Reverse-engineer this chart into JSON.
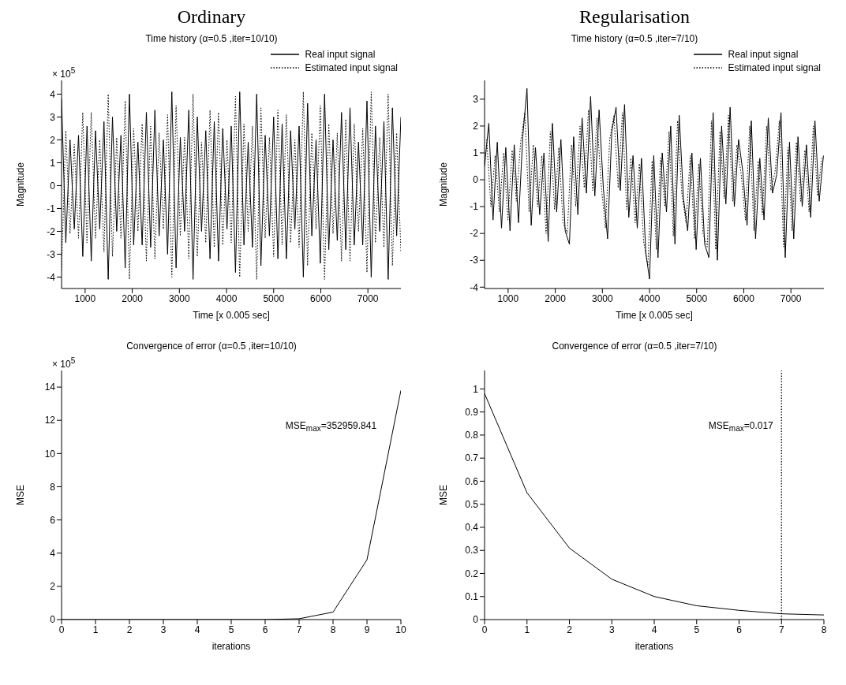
{
  "chart_data": [
    {
      "type": "line",
      "subtitle": "Ordinary",
      "title": "Time history (α=0.5 ,iter=10/10)",
      "xlabel": "Time [x 0.005 sec]",
      "ylabel": "Magnitude",
      "annotations": [
        "× 10$^{5}$"
      ],
      "legend": "top right",
      "x": [
        500,
        590,
        680,
        770,
        860,
        950,
        1040,
        1130,
        1220,
        1310,
        1400,
        1490,
        1580,
        1670,
        1760,
        1850,
        1940,
        2030,
        2120,
        2210,
        2300,
        2390,
        2480,
        2570,
        2660,
        2750,
        2840,
        2930,
        3020,
        3110,
        3200,
        3290,
        3380,
        3470,
        3560,
        3650,
        3740,
        3830,
        3920,
        4010,
        4100,
        4190,
        4280,
        4370,
        4460,
        4550,
        4640,
        4730,
        4820,
        4910,
        5000,
        5090,
        5180,
        5270,
        5360,
        5450,
        5540,
        5630,
        5720,
        5810,
        5900,
        5990,
        6080,
        6170,
        6260,
        6350,
        6440,
        6530,
        6620,
        6710,
        6800,
        6890,
        6980,
        7070,
        7160,
        7250,
        7340,
        7430,
        7520,
        7610,
        7700
      ],
      "series": [
        {
          "name": "Real input signal",
          "color": "#000000",
          "line_style": "solid",
          "values": [
            3.8,
            -2.5,
            2.0,
            -1.9,
            2.2,
            -3.1,
            2.6,
            -3.3,
            2.4,
            -1.9,
            2.8,
            -4.1,
            3.0,
            -2.0,
            2.2,
            -3.6,
            4.0,
            -2.6,
            1.9,
            -2.6,
            3.2,
            -2.7,
            3.3,
            -2.2,
            2.0,
            -3.0,
            4.1,
            -3.6,
            2.1,
            -2.0,
            3.3,
            -4.1,
            3.0,
            -2.0,
            2.4,
            -3.2,
            2.8,
            -3.3,
            2.5,
            -1.9,
            2.6,
            -3.8,
            4.1,
            -2.6,
            1.9,
            -2.7,
            4.0,
            -3.5,
            2.2,
            -2.2,
            3.0,
            -3.2,
            2.7,
            -3.2,
            2.4,
            -1.9,
            2.6,
            -4.0,
            3.6,
            -2.2,
            2.0,
            -3.4,
            4.0,
            -2.8,
            2.0,
            -2.4,
            3.2,
            -2.8,
            3.4,
            -2.6,
            1.9,
            -2.6,
            3.7,
            -4.0,
            2.6,
            -2.0,
            2.8,
            -4.1,
            3.4,
            -2.2,
            3.0
          ]
        },
        {
          "name": "Estimated input signal",
          "color": "#000000",
          "line_style": "dotted",
          "values": [
            -3.7,
            2.4,
            -2.1,
            1.8,
            -2.3,
            3.2,
            -2.5,
            3.2,
            -2.3,
            2.0,
            -2.9,
            4.0,
            -3.1,
            2.1,
            -2.3,
            3.7,
            -4.1,
            2.5,
            -2.0,
            2.7,
            -3.3,
            2.6,
            -3.2,
            2.3,
            -1.9,
            3.1,
            -4.0,
            3.5,
            -2.2,
            2.1,
            -3.2,
            4.0,
            -3.1,
            1.9,
            -2.5,
            3.3,
            -2.7,
            3.2,
            -2.6,
            2.0,
            -2.5,
            3.9,
            -4.0,
            2.7,
            -2.0,
            2.6,
            -4.1,
            3.4,
            -2.3,
            2.1,
            -3.1,
            3.3,
            -2.6,
            3.1,
            -2.5,
            2.0,
            -2.7,
            4.1,
            -3.5,
            2.3,
            -1.9,
            3.5,
            -4.1,
            2.7,
            -2.1,
            2.3,
            -3.3,
            2.9,
            -3.3,
            2.7,
            -2.0,
            2.5,
            -3.8,
            4.1,
            -2.5,
            2.1,
            -2.7,
            4.0,
            -3.5,
            2.3,
            -2.9
          ]
        }
      ],
      "xlim": [
        500,
        7700
      ],
      "xticks": [
        1000,
        2000,
        3000,
        4000,
        5000,
        6000,
        7000
      ],
      "ylim": [
        -4.5,
        4.6
      ],
      "yticks": [
        -4,
        -3,
        -2,
        -1,
        0,
        1,
        2,
        3,
        4
      ]
    },
    {
      "type": "line",
      "subtitle": "Regularisation",
      "title": "Time history (α=0.5 ,iter=7/10)",
      "xlabel": "Time [x 0.005 sec]",
      "ylabel": "Magnitude",
      "legend": "top right",
      "series": [
        {
          "name": "Real input signal",
          "color": "#000000",
          "line_style": "solid",
          "x": [
            500,
            590,
            680,
            770,
            860,
            950,
            1040,
            1130,
            1220,
            1310,
            1400,
            1490,
            1580,
            1670,
            1760,
            1850,
            1940,
            2030,
            2120,
            2210,
            2300,
            2390,
            2480,
            2570,
            2660,
            2750,
            2840,
            2930,
            3020,
            3110,
            3200,
            3290,
            3380,
            3470,
            3560,
            3650,
            3740,
            3830,
            3920,
            4000,
            4090,
            4180,
            4270,
            4360,
            4450,
            4540,
            4630,
            4720,
            4810,
            4900,
            4990,
            5080,
            5170,
            5260,
            5350,
            5440,
            5530,
            5620,
            5710,
            5800,
            5890,
            5980,
            6070,
            6160,
            6250,
            6340,
            6430,
            6520,
            6610,
            6700,
            6790,
            6880,
            6970,
            7060,
            7150,
            7240,
            7330,
            7420,
            7510,
            7600,
            7690
          ],
          "values": [
            0.5,
            2.1,
            -1.5,
            1.4,
            -1.8,
            1.2,
            -1.9,
            1.3,
            -1.6,
            1.6,
            3.4,
            -1.7,
            1.2,
            -1.3,
            1.0,
            -2.3,
            2.1,
            -1.2,
            1.5,
            -1.9,
            -2.4,
            1.6,
            -1.3,
            2.3,
            -0.5,
            3.1,
            -0.6,
            2.6,
            -0.3,
            -2.2,
            1.8,
            2.7,
            -0.4,
            2.8,
            -1.4,
            0.9,
            -1.8,
            0.8,
            -2.7,
            -3.7,
            0.9,
            -2.9,
            1.0,
            -1.2,
            2.0,
            -2.4,
            2.4,
            -0.7,
            -1.9,
            1.0,
            -2.6,
            0.8,
            -2.4,
            -2.9,
            2.5,
            -3.0,
            2.0,
            -0.9,
            2.7,
            -1.0,
            1.5,
            0.3,
            -1.7,
            2.2,
            -2.2,
            0.8,
            -1.5,
            2.3,
            -0.5,
            0.2,
            2.5,
            -2.9,
            1.4,
            -2.2,
            1.6,
            -1.0,
            1.3,
            -1.4,
            2.2,
            -0.8,
            0.9
          ]
        },
        {
          "name": "Estimated input signal",
          "color": "#000000",
          "line_style": "dotted",
          "x": [
            545,
            635,
            725,
            815,
            905,
            995,
            1085,
            1175,
            1265,
            1355,
            1445,
            1535,
            1625,
            1715,
            1805,
            1895,
            1985,
            2075,
            2165,
            2255,
            2345,
            2435,
            2525,
            2615,
            2705,
            2795,
            2885,
            2975,
            3065,
            3155,
            3245,
            3335,
            3425,
            3515,
            3605,
            3695,
            3785,
            3875,
            3965,
            4055,
            4145,
            4235,
            4325,
            4415,
            4505,
            4595,
            4685,
            4775,
            4865,
            4955,
            5045,
            5135,
            5225,
            5315,
            5405,
            5495,
            5585,
            5675,
            5765,
            5855,
            5945,
            6035,
            6125,
            6215,
            6305,
            6395,
            6485,
            6575,
            6665,
            6755,
            6845,
            6935,
            7025,
            7115,
            7205,
            7295,
            7385,
            7475,
            7565,
            7655
          ],
          "values": [
            1.5,
            -1.0,
            0.9,
            -1.2,
            1.0,
            -1.5,
            1.1,
            -0.8,
            1.4,
            2.5,
            -1.2,
            1.3,
            -1.0,
            0.9,
            -2.0,
            1.8,
            -1.1,
            1.2,
            -1.6,
            -2.0,
            1.3,
            -1.0,
            2.0,
            -0.3,
            2.6,
            -0.4,
            2.3,
            -0.2,
            -1.8,
            1.5,
            2.4,
            -0.3,
            2.5,
            -1.1,
            0.8,
            -1.6,
            0.6,
            -2.3,
            -3.2,
            0.7,
            -2.6,
            0.8,
            -1.0,
            1.8,
            -2.1,
            2.2,
            -0.5,
            -1.6,
            0.9,
            -2.2,
            0.6,
            -2.0,
            -2.5,
            2.2,
            -2.6,
            1.8,
            -0.7,
            2.4,
            -0.8,
            1.3,
            0.2,
            -1.5,
            2.0,
            -1.9,
            0.7,
            -1.3,
            2.0,
            -0.4,
            0.3,
            2.2,
            -2.5,
            1.2,
            -1.9,
            1.4,
            -0.8,
            1.1,
            -1.2,
            2.0,
            -0.6,
            0.8
          ]
        }
      ],
      "xlim": [
        500,
        7700
      ],
      "xticks": [
        1000,
        2000,
        3000,
        4000,
        5000,
        6000,
        7000
      ],
      "ylim": [
        -4.05,
        3.7
      ],
      "yticks": [
        -4,
        -3,
        -2,
        -1,
        0,
        1,
        2,
        3
      ]
    },
    {
      "type": "line",
      "title": "Convergence of error (α=0.5 ,iter=10/10)",
      "xlabel": "iterations",
      "ylabel": "MSE",
      "annotations": [
        "× 10$^{5}$",
        "MSE$_{max}$=352959.841"
      ],
      "x": [
        0,
        1,
        2,
        3,
        4,
        5,
        6,
        7,
        8,
        9,
        10
      ],
      "series": [
        {
          "color": "#000000",
          "values": [
            0,
            0,
            0,
            0,
            0,
            0,
            0,
            0.05,
            0.45,
            3.6,
            13.8
          ]
        }
      ],
      "xlim": [
        0,
        10
      ],
      "xticks": [
        0,
        1,
        2,
        3,
        4,
        5,
        6,
        7,
        8,
        9,
        10
      ],
      "ylim": [
        0,
        15
      ],
      "yticks": [
        0,
        2,
        4,
        6,
        8,
        10,
        12,
        14
      ]
    },
    {
      "type": "line",
      "title": "Convergence of error (α=0.5 ,iter=7/10)",
      "xlabel": "iterations",
      "ylabel": "MSE",
      "annotations": [
        "MSE$_{max}$=0.017"
      ],
      "x": [
        0,
        1,
        2,
        3,
        4,
        5,
        6,
        7,
        8
      ],
      "series": [
        {
          "color": "#000000",
          "values": [
            0.98,
            0.55,
            0.31,
            0.175,
            0.1,
            0.06,
            0.04,
            0.025,
            0.02
          ]
        }
      ],
      "ref_lines": [
        {
          "axis": "x",
          "value": 7,
          "line_style": "dotted",
          "color": "#000000"
        }
      ],
      "xlim": [
        0,
        8
      ],
      "xticks": [
        0,
        1,
        2,
        3,
        4,
        5,
        6,
        7,
        8
      ],
      "ylim": [
        0,
        1.08
      ],
      "yticks": [
        0,
        0.1,
        0.2,
        0.3,
        0.4,
        0.5,
        0.6,
        0.7,
        0.8,
        0.9,
        1
      ]
    }
  ]
}
